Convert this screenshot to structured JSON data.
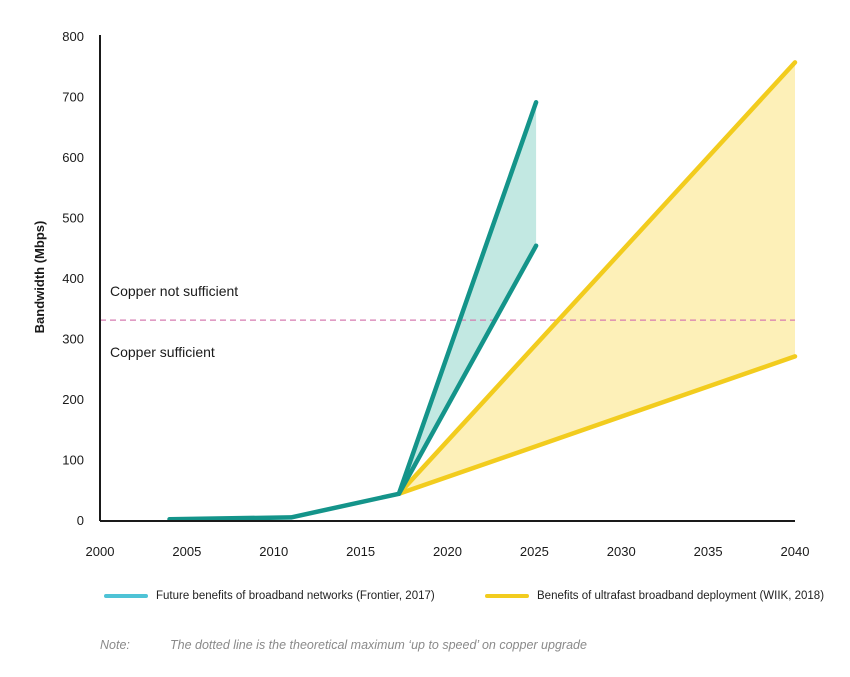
{
  "chart_data": {
    "type": "line",
    "ylabel": "Bandwidth (Mbps)",
    "xlabel": "",
    "xlim": [
      2000,
      2040
    ],
    "ylim": [
      0,
      800
    ],
    "xticks": [
      2000,
      2005,
      2010,
      2015,
      2020,
      2025,
      2030,
      2035,
      2040
    ],
    "yticks": [
      0,
      100,
      200,
      300,
      400,
      500,
      600,
      700,
      800
    ],
    "grid": false,
    "legend_position": "bottom",
    "threshold": {
      "value": 332,
      "color": "#d67bb0",
      "label_above": "Copper not sufficient",
      "label_below": "Copper sufficient"
    },
    "series": [
      {
        "name": "Future benefits of broadband networks (Frontier, 2017)",
        "color": "#14948a",
        "legend_color": "#4ec3d6",
        "fill": "#c2e8e2",
        "base": [
          [
            2004,
            3
          ],
          [
            2011,
            6
          ],
          [
            2017.2,
            45
          ]
        ],
        "upper": [
          [
            2017.2,
            45
          ],
          [
            2025.1,
            692
          ]
        ],
        "lower": [
          [
            2017.2,
            45
          ],
          [
            2025.1,
            455
          ]
        ]
      },
      {
        "name": "Benefits of ultrafast broadband deployment (WIIK, 2018)",
        "color": "#f2cc1e",
        "legend_color": "#f2cc1e",
        "fill": "#fdf0b8",
        "upper": [
          [
            2017.2,
            45
          ],
          [
            2040,
            758
          ]
        ],
        "lower": [
          [
            2017.2,
            45
          ],
          [
            2040,
            272
          ]
        ]
      }
    ]
  },
  "note": {
    "label": "Note:",
    "text": "The dotted line is the theoretical maximum ‘up to speed’ on copper upgrade"
  }
}
